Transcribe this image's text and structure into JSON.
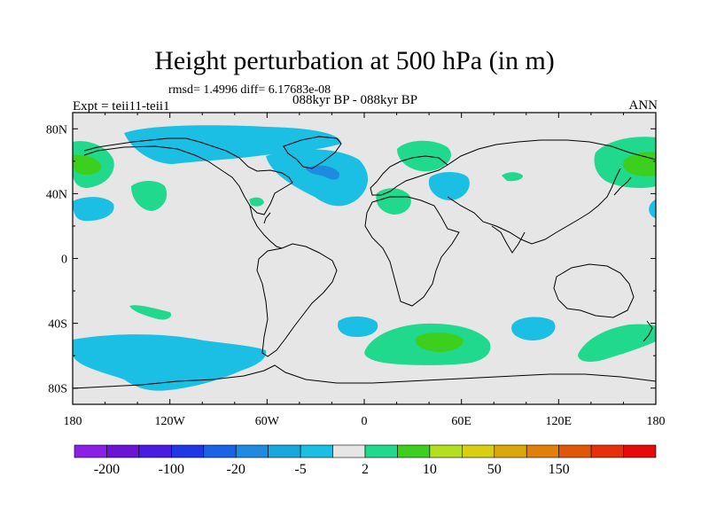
{
  "title": "Height perturbation at 500 hPa (in m)",
  "stats_line": "rmsd= 1.4996 diff= 6.17683e-08",
  "experiment_label": "Expt = teii11-teii1",
  "period_label": "088kyr BP - 088kyr BP",
  "season_label": "ANN",
  "axes": {
    "y_ticks": [
      {
        "label": "80N",
        "lat": 80
      },
      {
        "label": "40N",
        "lat": 40
      },
      {
        "label": "0",
        "lat": 0
      },
      {
        "label": "40S",
        "lat": -40
      },
      {
        "label": "80S",
        "lat": -80
      }
    ],
    "x_ticks": [
      {
        "label": "180",
        "lon": -180
      },
      {
        "label": "120W",
        "lon": -120
      },
      {
        "label": "60W",
        "lon": -60
      },
      {
        "label": "0",
        "lon": 0
      },
      {
        "label": "60E",
        "lon": 60
      },
      {
        "label": "120E",
        "lon": 120
      },
      {
        "label": "180",
        "lon": 180
      }
    ],
    "lat_range": [
      -90,
      90
    ],
    "lon_range": [
      -180,
      180
    ]
  },
  "colorbar": {
    "colors": [
      "#8a1fe6",
      "#6a14d6",
      "#4a1ce0",
      "#2037e6",
      "#1b63e6",
      "#1f8be0",
      "#17a8dc",
      "#1bbfe3",
      "#e6e6e6",
      "#20d98c",
      "#3ccf1e",
      "#b2e01e",
      "#d8cf12",
      "#d9a80c",
      "#e07f0a",
      "#e0570a",
      "#e6300a",
      "#e60a0a"
    ],
    "labels": [
      {
        "text": "-200",
        "boundary": 1
      },
      {
        "text": "-100",
        "boundary": 3
      },
      {
        "text": "-20",
        "boundary": 5
      },
      {
        "text": "-5",
        "boundary": 7
      },
      {
        "text": "2",
        "boundary": 9
      },
      {
        "text": "10",
        "boundary": 11
      },
      {
        "text": "50",
        "boundary": 13
      },
      {
        "text": "150",
        "boundary": 15
      }
    ]
  },
  "colors": {
    "background_field": "#e6e6e6",
    "negative_light": "#1bbfe3",
    "negative_mid": "#1f8be0",
    "positive_light": "#20d98c",
    "positive_mid": "#3ccf1e"
  }
}
